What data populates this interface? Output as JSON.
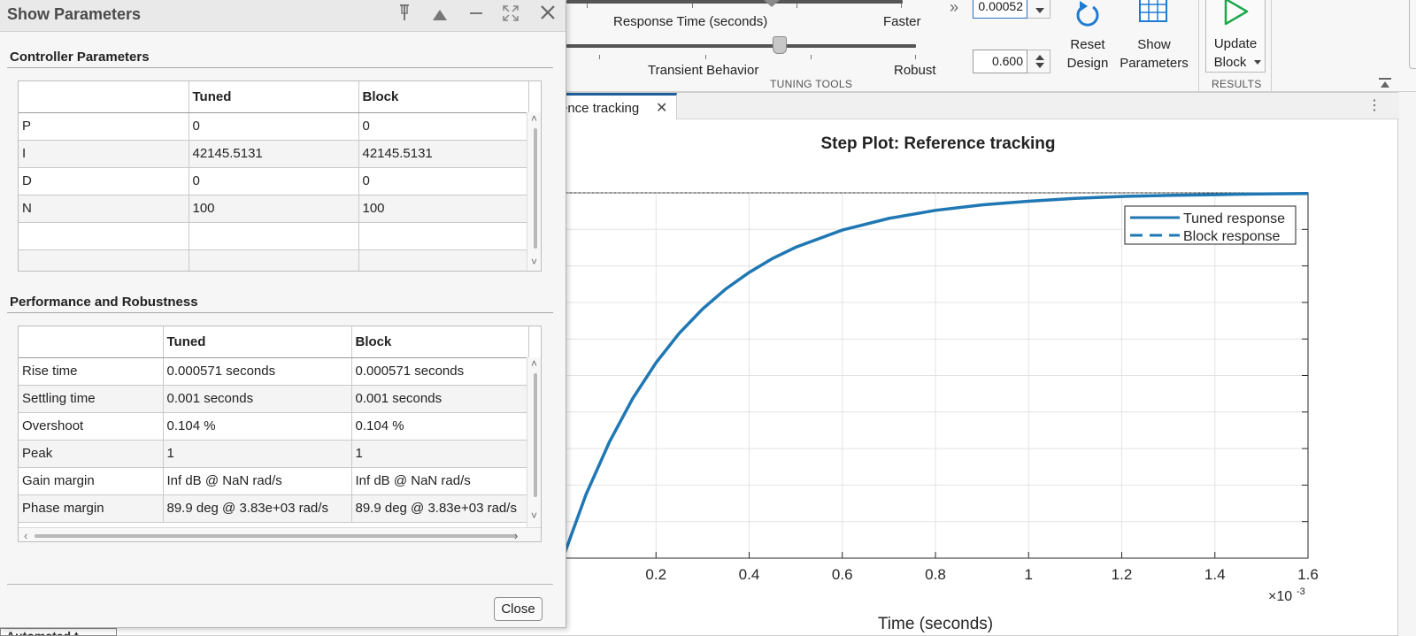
{
  "toolstrip": {
    "response_time_label": "Response Time (seconds)",
    "faster_label": "Faster",
    "transient_label": "Transient Behavior",
    "robust_label": "Robust",
    "response_time_value": "0.00052",
    "transient_value": "0.600",
    "tuning_tools_label": "TUNING TOOLS",
    "results_label": "RESULTS",
    "reset_design_line1": "Reset",
    "reset_design_line2": "Design",
    "show_params_line1": "Show",
    "show_params_line2": "Parameters",
    "update_block_line1": "Update",
    "update_block_line2": "Block",
    "response_time_slider_level": 0.61,
    "transient_slider_level": 0.61
  },
  "document": {
    "tab_label": "ence tracking",
    "bottom_tab_label": "Automated t"
  },
  "dialog": {
    "title": "Show Parameters",
    "controller_section_title": "Controller Parameters",
    "performance_section_title": "Performance and Robustness",
    "controller_columns": [
      "",
      "Tuned",
      "Block"
    ],
    "controller_rows": [
      [
        "P",
        "0",
        "0"
      ],
      [
        "I",
        "42145.5131",
        "42145.5131"
      ],
      [
        "D",
        "0",
        "0"
      ],
      [
        "N",
        "100",
        "100"
      ],
      [
        "",
        "",
        ""
      ],
      [
        "",
        "",
        ""
      ]
    ],
    "performance_columns": [
      "",
      "Tuned",
      "Block"
    ],
    "performance_rows": [
      [
        "Rise time",
        "0.000571 seconds",
        "0.000571 seconds"
      ],
      [
        "Settling time",
        "0.001 seconds",
        "0.001 seconds"
      ],
      [
        "Overshoot",
        "0.104 %",
        "0.104 %"
      ],
      [
        "Peak",
        "1",
        "1"
      ],
      [
        "Gain margin",
        "Inf dB @ NaN rad/s",
        "Inf dB @ NaN rad/s"
      ],
      [
        "Phase margin",
        "89.9 deg @ 3.83e+03 rad/s",
        "89.9 deg @ 3.83e+03 rad/s"
      ]
    ],
    "close_label": "Close"
  },
  "chart_data": {
    "type": "line",
    "title": "Step Plot: Reference tracking",
    "xlabel": "Time (seconds)",
    "x_exponent_label": "×10",
    "x_exponent_power": "-3",
    "x_ticks": [
      0.2,
      0.4,
      0.6,
      0.8,
      1,
      1.2,
      1.4,
      1.6
    ],
    "x_tick_labels": [
      "0.2",
      "0.4",
      "0.6",
      "0.8",
      "1",
      "1.2",
      "1.4",
      "1.6"
    ],
    "xlim": [
      0,
      1.6
    ],
    "ylim": [
      0,
      1
    ],
    "grid": true,
    "legend_position": "top-right",
    "series": [
      {
        "name": "Tuned response",
        "style": "solid",
        "color": "#1f77b4",
        "x": [
          0,
          0.05,
          0.1,
          0.15,
          0.2,
          0.25,
          0.3,
          0.35,
          0.4,
          0.45,
          0.5,
          0.6,
          0.7,
          0.8,
          0.9,
          1.0,
          1.1,
          1.2,
          1.3,
          1.4,
          1.5,
          1.6
        ],
        "y": [
          0,
          0.175,
          0.318,
          0.437,
          0.535,
          0.616,
          0.682,
          0.737,
          0.782,
          0.82,
          0.851,
          0.898,
          0.93,
          0.952,
          0.967,
          0.977,
          0.985,
          0.99,
          0.993,
          0.995,
          0.997,
          0.998
        ]
      },
      {
        "name": "Block response",
        "style": "dashed",
        "color": "#1f77b4",
        "x": [
          0,
          0.05,
          0.1,
          0.15,
          0.2,
          0.25,
          0.3,
          0.35,
          0.4,
          0.45,
          0.5,
          0.6,
          0.7,
          0.8,
          0.9,
          1.0,
          1.1,
          1.2,
          1.3,
          1.4,
          1.5,
          1.6
        ],
        "y": [
          0,
          0.175,
          0.318,
          0.437,
          0.535,
          0.616,
          0.682,
          0.737,
          0.782,
          0.82,
          0.851,
          0.898,
          0.93,
          0.952,
          0.967,
          0.977,
          0.985,
          0.99,
          0.993,
          0.995,
          0.997,
          0.998
        ]
      }
    ]
  }
}
